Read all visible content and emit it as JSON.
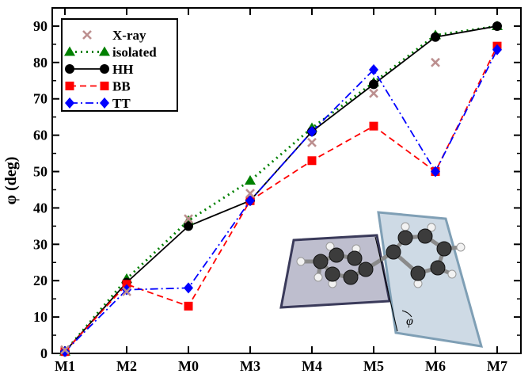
{
  "chart_data": {
    "type": "line",
    "categories": [
      "M1",
      "M2",
      "M0",
      "M3",
      "M4",
      "M5",
      "M6",
      "M7"
    ],
    "ylabel": "φ (deg)",
    "xlabel": "",
    "ylim": [
      0,
      95
    ],
    "yticks": [
      0,
      10,
      20,
      30,
      40,
      50,
      60,
      70,
      80,
      90
    ],
    "grid": false,
    "legend_position": "top-left",
    "series": [
      {
        "name": "X-ray",
        "color": "#bc8f8f",
        "marker": "x",
        "line": "none",
        "values": [
          1,
          17,
          37,
          44,
          58,
          71.5,
          80,
          null
        ]
      },
      {
        "name": "isolated",
        "color": "#008000",
        "marker": "triangle",
        "line": "dotted",
        "values": [
          0.5,
          20.5,
          36.5,
          47.5,
          62,
          74.5,
          87.5,
          90
        ]
      },
      {
        "name": "HH",
        "color": "#000000",
        "marker": "circle",
        "line": "solid",
        "values": [
          0.5,
          19.5,
          35,
          42,
          61,
          74,
          87,
          90
        ]
      },
      {
        "name": "BB",
        "color": "#ff0000",
        "marker": "square",
        "line": "dashed",
        "values": [
          0.5,
          19,
          13,
          42,
          53,
          62.5,
          50,
          84.5
        ]
      },
      {
        "name": "TT",
        "color": "#0000ff",
        "marker": "diamond",
        "line": "dashdot",
        "values": [
          0.5,
          17.5,
          18,
          42,
          61,
          78,
          50,
          83.5
        ]
      }
    ],
    "inset": {
      "label": "φ",
      "description": "biphenyl torsion illustration"
    }
  }
}
